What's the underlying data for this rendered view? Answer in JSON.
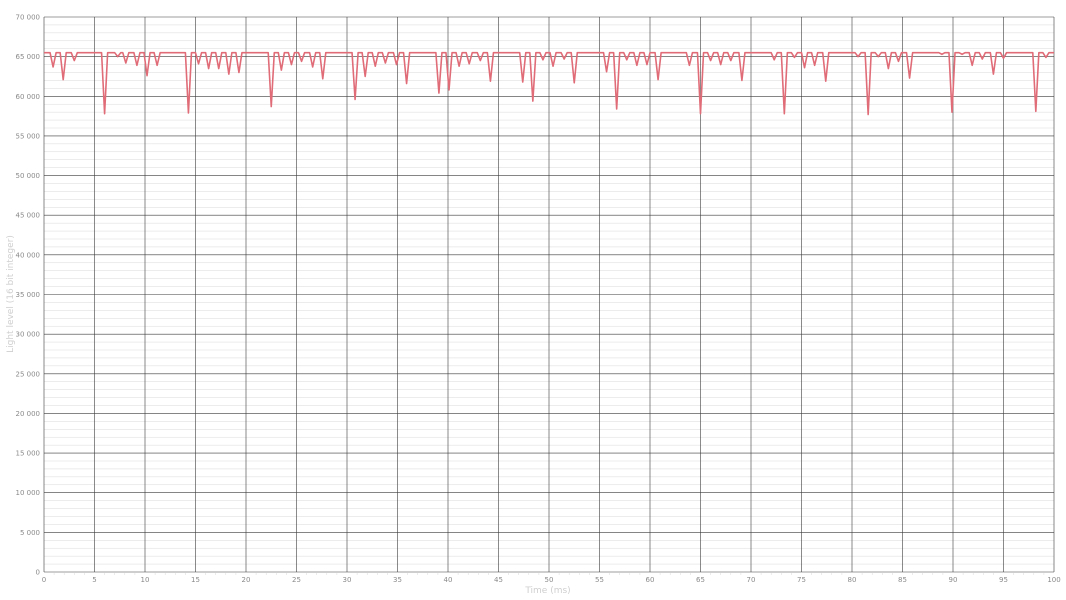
{
  "chart_data": {
    "type": "line",
    "xlabel": "Time (ms)",
    "ylabel": "Light level (16 bit integer)",
    "xlim": [
      0,
      100
    ],
    "ylim": [
      0,
      70000
    ],
    "x_ticks": [
      0,
      5,
      10,
      15,
      20,
      25,
      30,
      35,
      40,
      45,
      50,
      55,
      60,
      65,
      70,
      75,
      80,
      85,
      90,
      95,
      100
    ],
    "x_tick_labels": [
      "0",
      "5",
      "10",
      "15",
      "20",
      "25",
      "30",
      "35",
      "40",
      "45",
      "50",
      "55",
      "60",
      "65",
      "70",
      "75",
      "80",
      "85",
      "90",
      "95",
      "100"
    ],
    "y_ticks": [
      0,
      5000,
      10000,
      15000,
      20000,
      25000,
      30000,
      35000,
      40000,
      45000,
      50000,
      55000,
      60000,
      65000,
      70000
    ],
    "y_tick_labels": [
      "0",
      "5 000",
      "10 000",
      "15 000",
      "20 000",
      "25 000",
      "30 000",
      "35 000",
      "40 000",
      "45 000",
      "50 000",
      "55 000",
      "60 000",
      "65 000",
      "70 000"
    ],
    "grid": true,
    "baseline": 65500,
    "color": "#e06c78",
    "dips": [
      [
        0.9,
        63700
      ],
      [
        1.9,
        62100
      ],
      [
        3.0,
        64500
      ],
      [
        6.0,
        57800
      ],
      [
        7.3,
        65000
      ],
      [
        8.1,
        64200
      ],
      [
        9.2,
        63900
      ],
      [
        10.2,
        62600
      ],
      [
        11.2,
        63900
      ],
      [
        14.3,
        57900
      ],
      [
        15.3,
        64100
      ],
      [
        16.3,
        63500
      ],
      [
        17.3,
        63500
      ],
      [
        18.3,
        62800
      ],
      [
        19.3,
        63000
      ],
      [
        22.5,
        58700
      ],
      [
        23.5,
        63300
      ],
      [
        24.5,
        64000
      ],
      [
        25.5,
        64400
      ],
      [
        26.6,
        63700
      ],
      [
        27.6,
        62200
      ],
      [
        30.8,
        59600
      ],
      [
        31.8,
        62500
      ],
      [
        32.8,
        63800
      ],
      [
        33.8,
        64200
      ],
      [
        34.9,
        64000
      ],
      [
        35.9,
        61600
      ],
      [
        39.1,
        60400
      ],
      [
        40.1,
        60800
      ],
      [
        41.1,
        63800
      ],
      [
        42.1,
        64100
      ],
      [
        43.2,
        64500
      ],
      [
        44.2,
        61900
      ],
      [
        47.4,
        61800
      ],
      [
        48.4,
        59400
      ],
      [
        49.4,
        64600
      ],
      [
        50.4,
        63800
      ],
      [
        51.5,
        64700
      ],
      [
        52.5,
        61700
      ],
      [
        55.7,
        63100
      ],
      [
        56.7,
        58400
      ],
      [
        57.7,
        64600
      ],
      [
        58.7,
        63900
      ],
      [
        59.7,
        64000
      ],
      [
        60.8,
        62100
      ],
      [
        63.9,
        63900
      ],
      [
        65.0,
        57800
      ],
      [
        66.0,
        64500
      ],
      [
        67.0,
        64000
      ],
      [
        68.0,
        64500
      ],
      [
        69.1,
        62000
      ],
      [
        72.3,
        64600
      ],
      [
        73.3,
        57800
      ],
      [
        74.3,
        64900
      ],
      [
        75.3,
        63600
      ],
      [
        76.3,
        63900
      ],
      [
        77.4,
        61900
      ],
      [
        80.6,
        65000
      ],
      [
        81.6,
        57700
      ],
      [
        82.6,
        65000
      ],
      [
        83.6,
        63500
      ],
      [
        84.6,
        64400
      ],
      [
        85.7,
        62300
      ],
      [
        88.9,
        65300
      ],
      [
        89.9,
        58000
      ],
      [
        90.9,
        65300
      ],
      [
        91.9,
        63900
      ],
      [
        92.9,
        64700
      ],
      [
        94.0,
        62800
      ],
      [
        95.0,
        64800
      ],
      [
        98.2,
        58100
      ],
      [
        99.2,
        64900
      ]
    ],
    "series": [
      {
        "values_note": "",
        "x": [],
        "y": []
      }
    ]
  }
}
